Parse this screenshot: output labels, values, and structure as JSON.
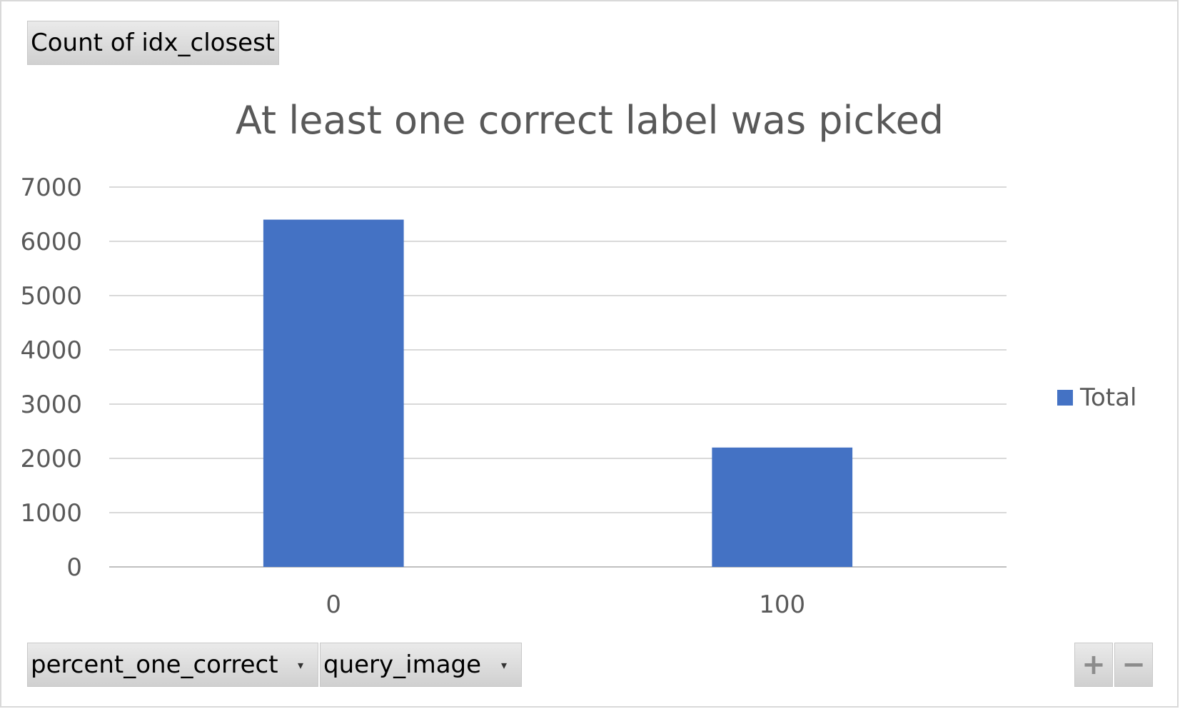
{
  "field_buttons": {
    "value_field": "Count of idx_closest",
    "axis_fields": [
      "percent_one_correct",
      "query_image"
    ]
  },
  "zoom": {
    "expand_label": "+",
    "collapse_label": "−"
  },
  "chart_data": {
    "type": "bar",
    "title": "At least one correct label was picked",
    "categories": [
      "0",
      "100"
    ],
    "series": [
      {
        "name": "Total",
        "values": [
          6400,
          2200
        ],
        "color": "#4472C4"
      }
    ],
    "ylim": [
      0,
      7000
    ],
    "yticks": [
      0,
      1000,
      2000,
      3000,
      4000,
      5000,
      6000,
      7000
    ],
    "xlabel": "",
    "ylabel": "",
    "grid": true,
    "legend_position": "right"
  }
}
